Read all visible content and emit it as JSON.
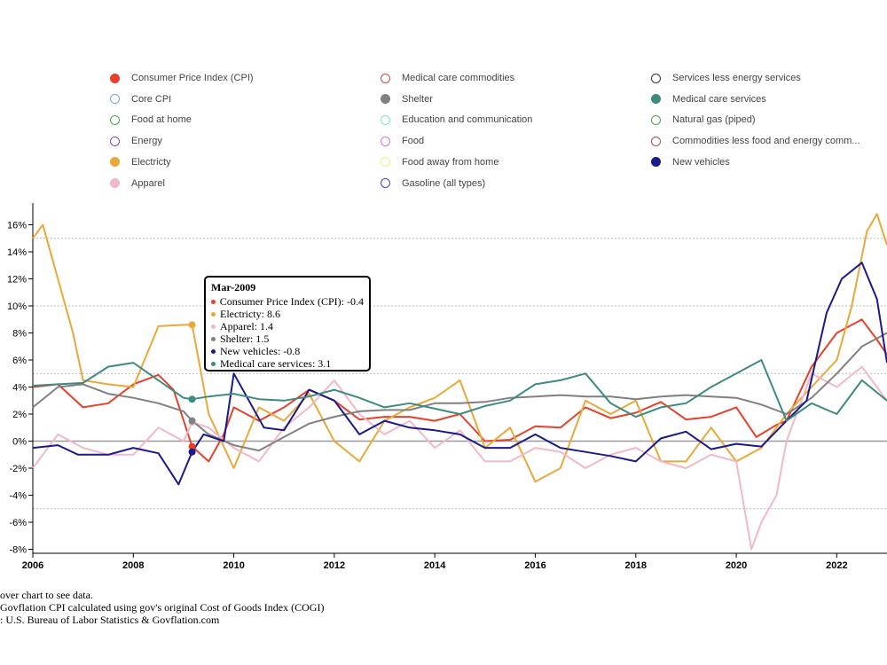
{
  "legend": {
    "items": [
      {
        "label": "Consumer Price Index (CPI)",
        "color": "#e8402a",
        "filled": true
      },
      {
        "label": "Core CPI",
        "color": "#6fa8dc",
        "filled": false
      },
      {
        "label": "Food at home",
        "color": "#4aa14a",
        "filled": false
      },
      {
        "label": "Energy",
        "color": "#8e3fb5",
        "filled": false
      },
      {
        "label": "Electricty",
        "color": "#e8a83a",
        "filled": true
      },
      {
        "label": "Apparel",
        "color": "#f2b8c6",
        "filled": true
      },
      {
        "label": "Medical care commodities",
        "color": "#c0504d",
        "filled": false
      },
      {
        "label": "Shelter",
        "color": "#808080",
        "filled": true
      },
      {
        "label": "Education and communication",
        "color": "#7fe0e0",
        "filled": false
      },
      {
        "label": "Food",
        "color": "#e070e0",
        "filled": false
      },
      {
        "label": "Food away from home",
        "color": "#f0f080",
        "filled": false
      },
      {
        "label": "Gasoline (all types)",
        "color": "#4040d0",
        "filled": false
      },
      {
        "label": "Services less energy services",
        "color": "#333333",
        "filled": false
      },
      {
        "label": "Medical care services",
        "color": "#3d8b80",
        "filled": true
      },
      {
        "label": "Natural gas (piped)",
        "color": "#5a9a5a",
        "filled": false
      },
      {
        "label": "Commodities less food and energy comm...",
        "color": "#a05050",
        "filled": false
      },
      {
        "label": "New vehicles",
        "color": "#1a1a8c",
        "filled": true
      }
    ]
  },
  "tooltip": {
    "title": "Mar-2009",
    "rows": [
      {
        "text": "Consumer Price Index (CPI): -0.4",
        "color": "#e8402a"
      },
      {
        "text": "Electricty: 8.6",
        "color": "#e8a83a"
      },
      {
        "text": "Apparel: 1.4",
        "color": "#f2b8c6"
      },
      {
        "text": "Shelter: 1.5",
        "color": "#808080"
      },
      {
        "text": "New vehicles: -0.8",
        "color": "#1a1a8c"
      },
      {
        "text": "Medical care services: 3.1",
        "color": "#3d8b80"
      }
    ]
  },
  "notes": {
    "line1": "over chart to see data.",
    "line2": "Govflation CPI calculated using gov's original Cost of Goods Index (COGI)",
    "line3": ": U.S. Bureau of Labor Statistics & Govflation.com"
  },
  "chart_data": {
    "type": "line",
    "xlim": [
      2006,
      2023
    ],
    "ylim": [
      -8,
      16
    ],
    "x_ticks": [
      2006,
      2008,
      2010,
      2012,
      2014,
      2016,
      2018,
      2020,
      2022
    ],
    "y_ticks": [
      -8,
      -6,
      -4,
      -2,
      0,
      2,
      4,
      6,
      8,
      10,
      12,
      14,
      16
    ],
    "y_tick_labels": [
      "-8%",
      "-6%",
      "-4%",
      "-2%",
      "0%",
      "2%",
      "4%",
      "6%",
      "8%",
      "10%",
      "12%",
      "14%",
      "16%"
    ],
    "gridlines": [
      -5,
      0,
      5,
      10,
      15
    ],
    "highlight": {
      "x": 2009.17,
      "label": "Mar-2009"
    },
    "series": [
      {
        "name": "Consumer Price Index (CPI)",
        "color": "#e8402a",
        "x": [
          2006,
          2006.5,
          2007,
          2007.5,
          2008,
          2008.5,
          2008.8,
          2009.17,
          2009.5,
          2009.8,
          2010,
          2010.5,
          2011,
          2011.5,
          2012,
          2012.5,
          2013,
          2013.5,
          2014,
          2014.5,
          2015,
          2015.5,
          2016,
          2016.5,
          2017,
          2017.5,
          2018,
          2018.5,
          2019,
          2019.5,
          2020,
          2020.4,
          2020.8,
          2021,
          2021.5,
          2022,
          2022.5,
          2022.8,
          2023
        ],
        "y": [
          4,
          4.2,
          2.5,
          2.8,
          4.2,
          4.9,
          3.8,
          -0.4,
          -1.5,
          0.5,
          2.5,
          1.5,
          2.5,
          3.8,
          3.0,
          1.6,
          1.8,
          1.8,
          1.5,
          2.0,
          0,
          0.1,
          1.1,
          1.0,
          2.5,
          1.7,
          2.1,
          2.9,
          1.6,
          1.8,
          2.5,
          0.3,
          1.2,
          1.5,
          5.5,
          8.0,
          9.0,
          7.5,
          6.4
        ]
      },
      {
        "name": "Electricty",
        "color": "#e8a83a",
        "x": [
          2006,
          2006.2,
          2006.5,
          2006.8,
          2007,
          2007.5,
          2008,
          2008.5,
          2009,
          2009.17,
          2009.5,
          2010,
          2010.5,
          2011,
          2011.5,
          2012,
          2012.5,
          2013,
          2013.5,
          2014,
          2014.5,
          2015,
          2015.5,
          2016,
          2016.5,
          2017,
          2017.5,
          2018,
          2018.5,
          2019,
          2019.5,
          2020,
          2020.5,
          2021,
          2021.5,
          2022,
          2022.3,
          2022.6,
          2022.8,
          2023
        ],
        "y": [
          15,
          16,
          12,
          8,
          4.5,
          4.2,
          4.0,
          8.5,
          8.6,
          8.6,
          2,
          -2,
          2.5,
          1.5,
          3.5,
          0,
          -1.5,
          1.5,
          2.5,
          3.2,
          4.5,
          -0.5,
          1,
          -3,
          -2,
          3,
          2,
          3,
          -1.5,
          -1.5,
          1,
          -1.5,
          -0.5,
          2,
          4,
          6,
          10,
          15.5,
          16.8,
          14.5
        ]
      },
      {
        "name": "Apparel",
        "color": "#f2b8c6",
        "x": [
          2006,
          2006.5,
          2007,
          2007.5,
          2008,
          2008.5,
          2009,
          2009.17,
          2009.5,
          2010,
          2010.5,
          2011,
          2011.5,
          2012,
          2012.5,
          2013,
          2013.5,
          2014,
          2014.5,
          2015,
          2015.5,
          2016,
          2016.5,
          2017,
          2017.5,
          2018,
          2018.5,
          2019,
          2019.5,
          2020,
          2020.3,
          2020.5,
          2020.8,
          2021,
          2021.5,
          2022,
          2022.5,
          2023
        ],
        "y": [
          -2,
          0.5,
          -0.5,
          -1,
          -1,
          1,
          0,
          1.4,
          1,
          -0.5,
          -1.5,
          1,
          2.5,
          4.5,
          2.0,
          0.5,
          1.5,
          -0.5,
          0.8,
          -1.5,
          -1.5,
          -0.5,
          -0.8,
          -2.0,
          -1.0,
          -0.5,
          -1.5,
          -2,
          -1,
          -1.5,
          -8,
          -6,
          -4,
          0,
          5,
          4,
          5.5,
          3
        ]
      },
      {
        "name": "Shelter",
        "color": "#808080",
        "x": [
          2006,
          2006.5,
          2007,
          2007.5,
          2008,
          2008.5,
          2009,
          2009.17,
          2009.5,
          2010,
          2010.5,
          2011,
          2011.5,
          2012,
          2012.5,
          2013,
          2013.5,
          2014,
          2014.5,
          2015,
          2015.5,
          2016,
          2016.5,
          2017,
          2017.5,
          2018,
          2018.5,
          2019,
          2019.5,
          2020,
          2020.5,
          2021,
          2021.5,
          2022,
          2022.5,
          2023
        ],
        "y": [
          2.5,
          4,
          4.2,
          3.5,
          3.2,
          2.8,
          2.2,
          1.5,
          0.5,
          -0.3,
          -0.7,
          0.3,
          1.3,
          1.8,
          2.2,
          2.3,
          2.3,
          2.8,
          2.8,
          2.9,
          3.2,
          3.3,
          3.4,
          3.3,
          3.3,
          3.1,
          3.3,
          3.4,
          3.3,
          3.2,
          2.7,
          2.0,
          3.2,
          5.0,
          7.0,
          8.0
        ]
      },
      {
        "name": "New vehicles",
        "color": "#1a1a8c",
        "x": [
          2006,
          2006.5,
          2006.9,
          2007.2,
          2007.5,
          2008,
          2008.5,
          2008.9,
          2009.17,
          2009.4,
          2009.8,
          2010,
          2010.3,
          2010.6,
          2011,
          2011.5,
          2012,
          2012.5,
          2013,
          2013.5,
          2014,
          2014.5,
          2015,
          2015.5,
          2016,
          2016.5,
          2017,
          2017.5,
          2018,
          2018.5,
          2019,
          2019.5,
          2020,
          2020.5,
          2021,
          2021.4,
          2021.8,
          2022.1,
          2022.5,
          2022.8,
          2023
        ],
        "y": [
          -0.5,
          -0.3,
          -1.0,
          -1.0,
          -1.0,
          -0.5,
          -0.9,
          -3.2,
          -0.8,
          0.5,
          0,
          5,
          3,
          1.0,
          0.8,
          3.8,
          3.0,
          0.5,
          1.5,
          1.0,
          0.8,
          0.5,
          -0.5,
          -0.5,
          0.5,
          -0.5,
          -0.8,
          -1.1,
          -1.5,
          0.2,
          0.7,
          -0.6,
          -0.2,
          -0.4,
          1.5,
          3.0,
          9.5,
          12,
          13.2,
          10.5,
          5.8
        ]
      },
      {
        "name": "Medical care services",
        "color": "#3d8b80",
        "x": [
          2006,
          2006.5,
          2007,
          2007.5,
          2008,
          2008.5,
          2009,
          2009.17,
          2009.5,
          2010,
          2010.5,
          2011,
          2011.5,
          2012,
          2012.5,
          2013,
          2013.5,
          2014,
          2014.5,
          2015,
          2015.5,
          2016,
          2016.5,
          2017,
          2017.5,
          2018,
          2018.5,
          2019,
          2019.5,
          2020,
          2020.5,
          2021,
          2021.5,
          2022,
          2022.5,
          2023
        ],
        "y": [
          4.1,
          4.2,
          4.3,
          5.5,
          5.8,
          4.5,
          3.2,
          3.1,
          3.3,
          3.5,
          3.1,
          3.0,
          3.3,
          3.8,
          3.2,
          2.5,
          2.8,
          2.4,
          2.0,
          2.6,
          3.0,
          4.2,
          4.5,
          5.0,
          2.8,
          1.8,
          2.5,
          2.8,
          4.0,
          5.0,
          6.0,
          1.5,
          2.8,
          2.0,
          4.5,
          3.0
        ]
      }
    ]
  }
}
